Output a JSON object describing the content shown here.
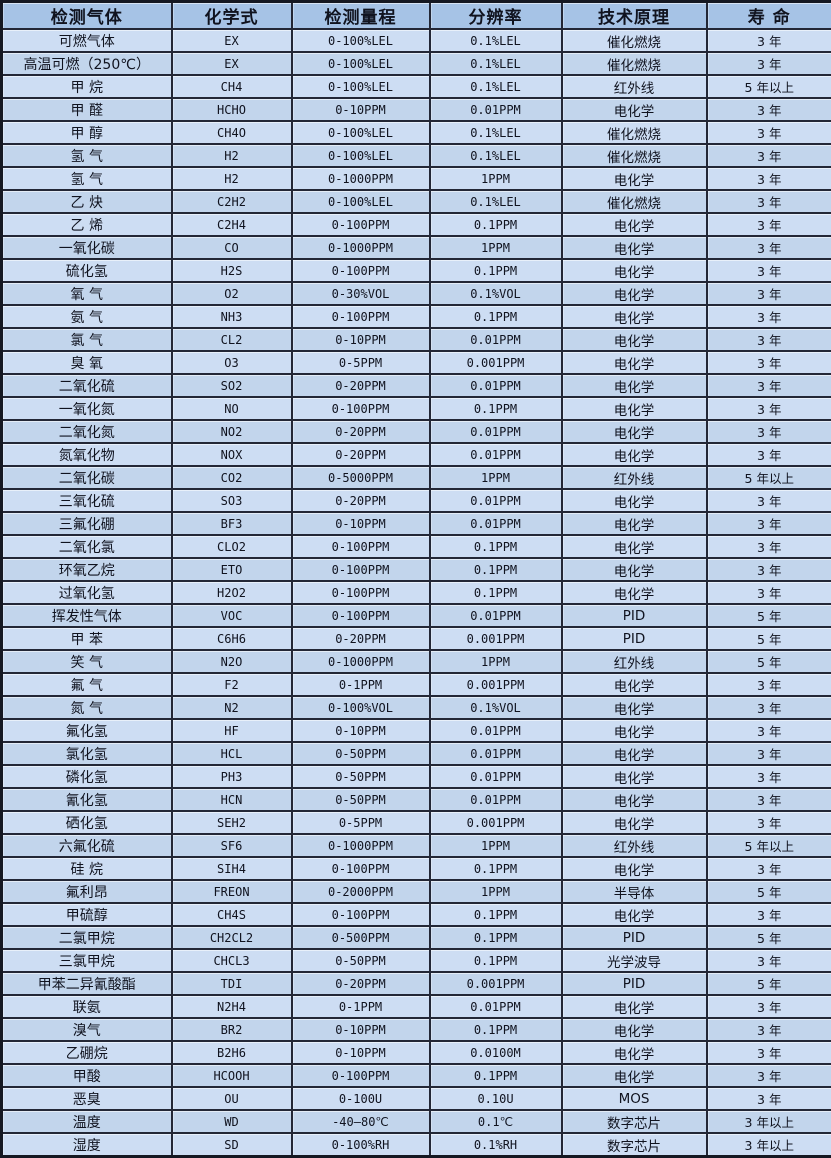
{
  "table": {
    "style": {
      "header_bg": "#a6c3e6",
      "row_bg_light": "#cdddf3",
      "row_bg_dark": "#c2d5ec",
      "border_color": "#232736",
      "text_color": "#10131f"
    },
    "columns": [
      "检测气体",
      "化学式",
      "检测量程",
      "分辨率",
      "技术原理",
      "寿  命"
    ],
    "rows": [
      {
        "gas": "可燃气体",
        "formula": "EX",
        "range": "0-100%LEL",
        "resolution": "0.1%LEL",
        "principle": "催化燃烧",
        "life": "3 年"
      },
      {
        "gas": "高温可燃（250℃）",
        "formula": "EX",
        "range": "0-100%LEL",
        "resolution": "0.1%LEL",
        "principle": "催化燃烧",
        "life": "3 年"
      },
      {
        "gas": "甲 烷",
        "formula": "CH4",
        "range": "0-100%LEL",
        "resolution": "0.1%LEL",
        "principle": "红外线",
        "life": "5 年以上"
      },
      {
        "gas": "甲 醛",
        "formula": "HCHO",
        "range": "0-10PPM",
        "resolution": "0.01PPM",
        "principle": "电化学",
        "life": "3 年"
      },
      {
        "gas": "甲 醇",
        "formula": "CH4O",
        "range": "0-100%LEL",
        "resolution": "0.1%LEL",
        "principle": "催化燃烧",
        "life": "3 年"
      },
      {
        "gas": "氢 气",
        "formula": "H2",
        "range": "0-100%LEL",
        "resolution": "0.1%LEL",
        "principle": "催化燃烧",
        "life": "3 年"
      },
      {
        "gas": "氢 气",
        "formula": "H2",
        "range": "0-1000PPM",
        "resolution": "1PPM",
        "principle": "电化学",
        "life": "3 年"
      },
      {
        "gas": "乙 炔",
        "formula": "C2H2",
        "range": "0-100%LEL",
        "resolution": "0.1%LEL",
        "principle": "催化燃烧",
        "life": "3 年"
      },
      {
        "gas": "乙 烯",
        "formula": "C2H4",
        "range": "0-100PPM",
        "resolution": "0.1PPM",
        "principle": "电化学",
        "life": "3 年"
      },
      {
        "gas": "一氧化碳",
        "formula": "CO",
        "range": "0-1000PPM",
        "resolution": "1PPM",
        "principle": "电化学",
        "life": "3 年"
      },
      {
        "gas": "硫化氢",
        "formula": "H2S",
        "range": "0-100PPM",
        "resolution": "0.1PPM",
        "principle": "电化学",
        "life": "3 年"
      },
      {
        "gas": "氧 气",
        "formula": "O2",
        "range": "0-30%VOL",
        "resolution": "0.1%VOL",
        "principle": "电化学",
        "life": "3 年"
      },
      {
        "gas": "氨 气",
        "formula": "NH3",
        "range": "0-100PPM",
        "resolution": "0.1PPM",
        "principle": "电化学",
        "life": "3 年"
      },
      {
        "gas": "氯 气",
        "formula": "CL2",
        "range": "0-10PPM",
        "resolution": "0.01PPM",
        "principle": "电化学",
        "life": "3 年"
      },
      {
        "gas": "臭 氧",
        "formula": "O3",
        "range": "0-5PPM",
        "resolution": "0.001PPM",
        "principle": "电化学",
        "life": "3 年"
      },
      {
        "gas": "二氧化硫",
        "formula": "SO2",
        "range": "0-20PPM",
        "resolution": "0.01PPM",
        "principle": "电化学",
        "life": "3 年"
      },
      {
        "gas": "一氧化氮",
        "formula": "NO",
        "range": "0-100PPM",
        "resolution": "0.1PPM",
        "principle": "电化学",
        "life": "3 年"
      },
      {
        "gas": "二氧化氮",
        "formula": "NO2",
        "range": "0-20PPM",
        "resolution": "0.01PPM",
        "principle": "电化学",
        "life": "3 年"
      },
      {
        "gas": "氮氧化物",
        "formula": "NOX",
        "range": "0-20PPM",
        "resolution": "0.01PPM",
        "principle": "电化学",
        "life": "3 年"
      },
      {
        "gas": "二氧化碳",
        "formula": "CO2",
        "range": "0-5000PPM",
        "resolution": "1PPM",
        "principle": "红外线",
        "life": "5 年以上"
      },
      {
        "gas": "三氧化硫",
        "formula": "SO3",
        "range": "0-20PPM",
        "resolution": "0.01PPM",
        "principle": "电化学",
        "life": "3 年"
      },
      {
        "gas": "三氟化硼",
        "formula": "BF3",
        "range": "0-10PPM",
        "resolution": "0.01PPM",
        "principle": "电化学",
        "life": "3 年"
      },
      {
        "gas": "二氧化氯",
        "formula": "CLO2",
        "range": "0-100PPM",
        "resolution": "0.1PPM",
        "principle": "电化学",
        "life": "3 年"
      },
      {
        "gas": "环氧乙烷",
        "formula": "ETO",
        "range": "0-100PPM",
        "resolution": "0.1PPM",
        "principle": "电化学",
        "life": "3 年"
      },
      {
        "gas": "过氧化氢",
        "formula": "H2O2",
        "range": "0-100PPM",
        "resolution": "0.1PPM",
        "principle": "电化学",
        "life": "3 年"
      },
      {
        "gas": "挥发性气体",
        "formula": "VOC",
        "range": "0-100PPM",
        "resolution": "0.01PPM",
        "principle": "PID",
        "life": "5 年"
      },
      {
        "gas": "甲 苯",
        "formula": "C6H6",
        "range": "0-20PPM",
        "resolution": "0.001PPM",
        "principle": "PID",
        "life": "5 年"
      },
      {
        "gas": "笑 气",
        "formula": "N2O",
        "range": "0-1000PPM",
        "resolution": "1PPM",
        "principle": "红外线",
        "life": "5 年"
      },
      {
        "gas": "氟 气",
        "formula": "F2",
        "range": "0-1PPM",
        "resolution": "0.001PPM",
        "principle": "电化学",
        "life": "3 年"
      },
      {
        "gas": "氮 气",
        "formula": "N2",
        "range": "0-100%VOL",
        "resolution": "0.1%VOL",
        "principle": "电化学",
        "life": "3 年"
      },
      {
        "gas": "氟化氢",
        "formula": "HF",
        "range": "0-10PPM",
        "resolution": "0.01PPM",
        "principle": "电化学",
        "life": "3 年"
      },
      {
        "gas": "氯化氢",
        "formula": "HCL",
        "range": "0-50PPM",
        "resolution": "0.01PPM",
        "principle": "电化学",
        "life": "3 年"
      },
      {
        "gas": "磷化氢",
        "formula": "PH3",
        "range": "0-50PPM",
        "resolution": "0.01PPM",
        "principle": "电化学",
        "life": "3 年"
      },
      {
        "gas": "氰化氢",
        "formula": "HCN",
        "range": "0-50PPM",
        "resolution": "0.01PPM",
        "principle": "电化学",
        "life": "3 年"
      },
      {
        "gas": "硒化氢",
        "formula": "SEH2",
        "range": "0-5PPM",
        "resolution": "0.001PPM",
        "principle": "电化学",
        "life": "3 年"
      },
      {
        "gas": "六氟化硫",
        "formula": "SF6",
        "range": "0-1000PPM",
        "resolution": "1PPM",
        "principle": "红外线",
        "life": "5 年以上"
      },
      {
        "gas": "硅 烷",
        "formula": "SIH4",
        "range": "0-100PPM",
        "resolution": "0.1PPM",
        "principle": "电化学",
        "life": "3 年"
      },
      {
        "gas": "氟利昂",
        "formula": "FREON",
        "range": "0-2000PPM",
        "resolution": "1PPM",
        "principle": "半导体",
        "life": "5 年"
      },
      {
        "gas": "甲硫醇",
        "formula": "CH4S",
        "range": "0-100PPM",
        "resolution": "0.1PPM",
        "principle": "电化学",
        "life": "3 年"
      },
      {
        "gas": "二氯甲烷",
        "formula": "CH2CL2",
        "range": "0-500PPM",
        "resolution": "0.1PPM",
        "principle": "PID",
        "life": "5 年"
      },
      {
        "gas": "三氯甲烷",
        "formula": "CHCL3",
        "range": "0-50PPM",
        "resolution": "0.1PPM",
        "principle": "光学波导",
        "life": "3 年"
      },
      {
        "gas": "甲苯二异氰酸酯",
        "formula": "TDI",
        "range": "0-20PPM",
        "resolution": "0.001PPM",
        "principle": "PID",
        "life": "5 年"
      },
      {
        "gas": "联氨",
        "formula": "N2H4",
        "range": "0-1PPM",
        "resolution": "0.01PPM",
        "principle": "电化学",
        "life": "3 年"
      },
      {
        "gas": "溴气",
        "formula": "BR2",
        "range": "0-10PPM",
        "resolution": "0.1PPM",
        "principle": "电化学",
        "life": "3 年"
      },
      {
        "gas": "乙硼烷",
        "formula": "B2H6",
        "range": "0-10PPM",
        "resolution": "0.0100M",
        "principle": "电化学",
        "life": "3 年"
      },
      {
        "gas": "甲酸",
        "formula": "HCOOH",
        "range": "0-100PPM",
        "resolution": "0.1PPM",
        "principle": "电化学",
        "life": "3 年"
      },
      {
        "gas": "恶臭",
        "formula": "OU",
        "range": "0-100U",
        "resolution": "0.10U",
        "principle": "MOS",
        "life": "3 年"
      },
      {
        "gas": "温度",
        "formula": "WD",
        "range": "-40—80℃",
        "resolution": "0.1℃",
        "principle": "数字芯片",
        "life": "3 年以上"
      },
      {
        "gas": "湿度",
        "formula": "SD",
        "range": "0-100%RH",
        "resolution": "0.1%RH",
        "principle": "数字芯片",
        "life": "3 年以上"
      }
    ]
  }
}
